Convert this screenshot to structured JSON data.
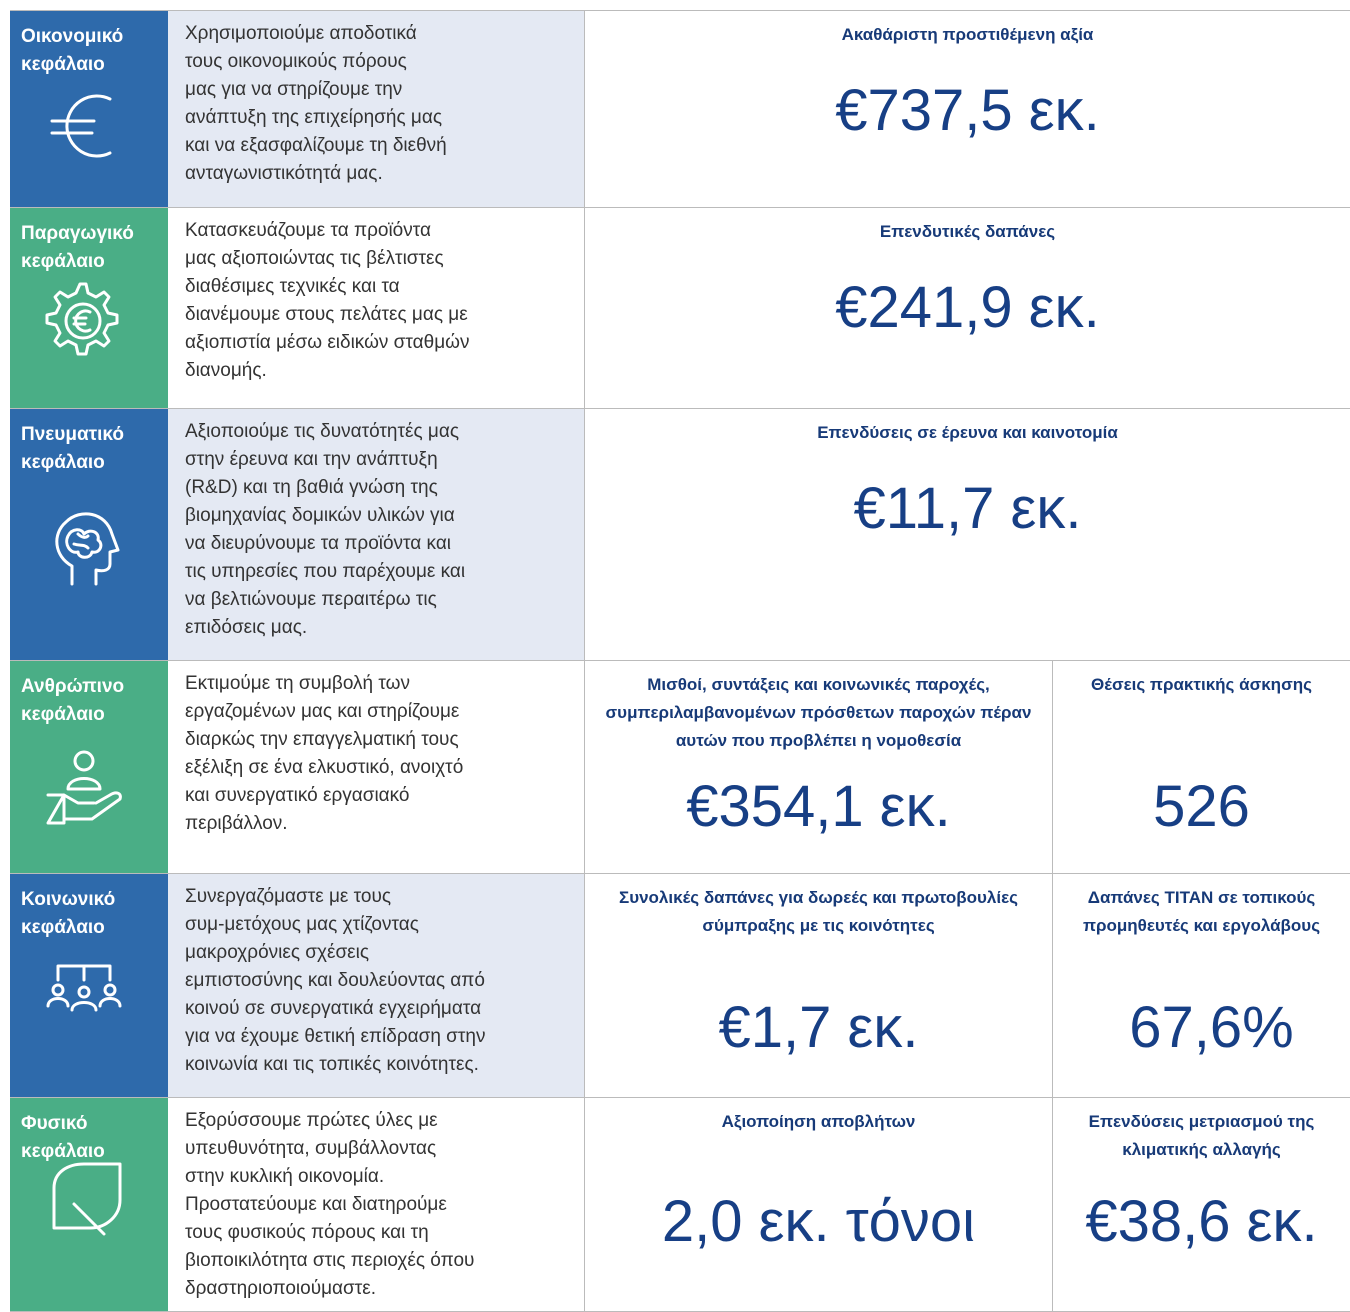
{
  "rows": [
    {
      "label": "Οικονομικό κεφάλαιο",
      "description": [
        "Χρησιμοποιούμε αποδοτικά",
        "τους οικονομικούς πόρους",
        "μας για να στηρίζουμε την",
        "ανάπτυξη της επιχείρησής μας",
        "και να εξασφαλίζουμε τη διεθνή",
        "ανταγωνιστικότητά μας."
      ],
      "metrics": [
        {
          "title": "Ακαθάριστη προστιθέμενη αξία",
          "value": "€737,5 εκ."
        }
      ]
    },
    {
      "label": "Παραγωγικό κεφάλαιο",
      "description": [
        "Κατασκευάζουμε τα προϊόντα",
        "μας αξιοποιώντας τις βέλτιστες",
        "διαθέσιμες τεχνικές και τα",
        "διανέμουμε στους πελάτες μας με",
        "αξιοπιστία μέσω ειδικών σταθμών",
        "διανομής."
      ],
      "metrics": [
        {
          "title": "Επενδυτικές δαπάνες",
          "value": "€241,9 εκ."
        }
      ]
    },
    {
      "label": "Πνευματικό κεφάλαιο",
      "description": [
        "Αξιοποιούμε τις δυνατότητές μας",
        "στην έρευνα και την ανάπτυξη",
        "(R&D) και τη βαθιά γνώση της",
        "βιομηχανίας δομικών υλικών για",
        "να διευρύνουμε τα προϊόντα και",
        "τις υπηρεσίες που παρέχουμε και",
        "να βελτιώνουμε περαιτέρω τις",
        "επιδόσεις μας."
      ],
      "metrics": [
        {
          "title": "Επενδύσεις σε έρευνα και καινοτομία",
          "value": "€11,7 εκ."
        }
      ]
    },
    {
      "label": "Ανθρώπινο κεφάλαιο",
      "description": [
        "Εκτιμούμε τη συμβολή των",
        "εργαζομένων μας και στηρίζουμε",
        "διαρκώς την επαγγελματική τους",
        "εξέλιξη σε ένα ελκυστικό, ανοιχτό",
        "και συνεργατικό εργασιακό",
        "περιβάλλον."
      ],
      "metrics": [
        {
          "title": "Μισθοί, συντάξεις και κοινωνικές παροχές, συμπεριλαμβανομένων πρόσθετων παροχών πέραν αυτών που προβλέπει η νομοθεσία",
          "value": "€354,1 εκ."
        },
        {
          "title": "Θέσεις πρακτικής άσκησης",
          "value": "526"
        }
      ]
    },
    {
      "label": "Κοινωνικό κεφάλαιο",
      "description": [
        "Συνεργαζόμαστε με τους",
        "συμ-μετόχους μας χτίζοντας",
        "μακροχρόνιες σχέσεις",
        "εμπιστοσύνης και δουλεύοντας από",
        "κοινού σε συνεργατικά εγχειρήματα",
        "για να έχουμε θετική επίδραση στην",
        "κοινωνία και τις τοπικές κοινότητες."
      ],
      "metrics": [
        {
          "title": "Συνολικές δαπάνες για δωρεές και πρωτοβουλίες σύμπραξης με τις κοινότητες",
          "value": "€1,7 εκ."
        },
        {
          "title": "Δαπάνες TITAN σε τοπικούς προμηθευτές και εργολάβους",
          "value": "67,6%"
        }
      ]
    },
    {
      "label": "Φυσικό κεφάλαιο",
      "description": [
        "Εξορύσσουμε πρώτες ύλες με",
        "υπευθυνότητα, συμβάλλοντας",
        "στην κυκλική οικονομία.",
        "Προστατεύουμε και διατηρούμε",
        "τους φυσικούς πόρους και τη",
        "βιοποικιλότητα στις περιοχές όπου",
        "δραστηριοποιούμαστε."
      ],
      "metrics": [
        {
          "title": "Αξιοποίηση αποβλήτων",
          "value": "2,0 εκ. τόνοι"
        },
        {
          "title": "Επενδύσεις μετριασμού της κλιματικής αλλαγής",
          "value": "€38,6 εκ."
        }
      ]
    }
  ]
}
